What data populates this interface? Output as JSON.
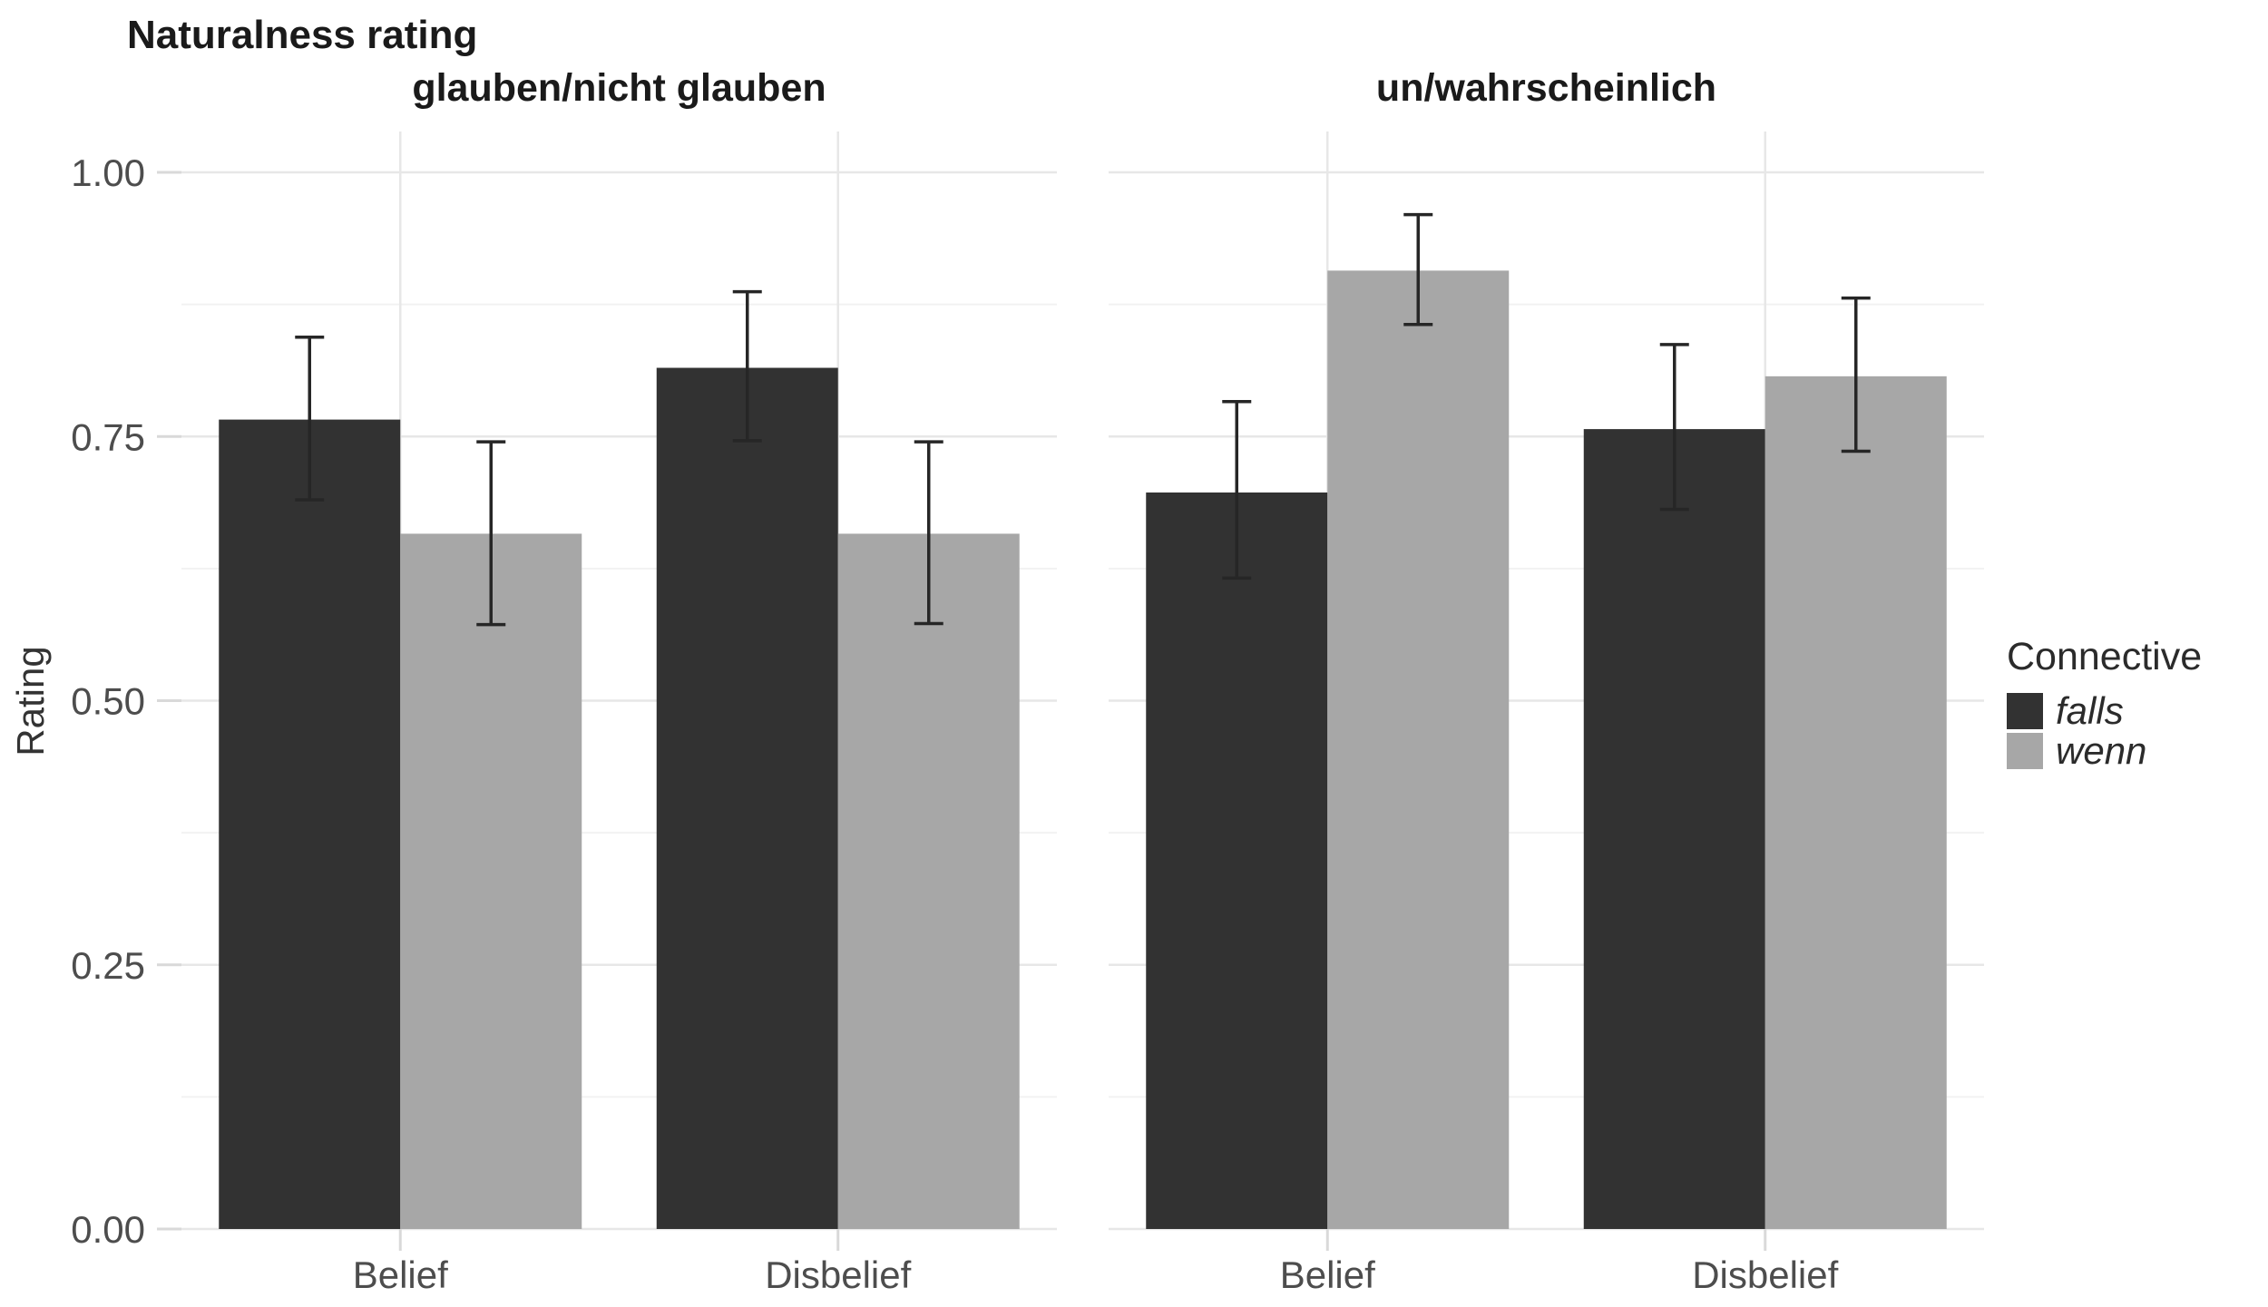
{
  "chart_data": {
    "type": "bar",
    "title": "Naturalness rating",
    "ylabel": "Rating",
    "xlabel": "",
    "ylim": [
      0,
      1
    ],
    "grid": true,
    "legend_position": "right",
    "y_ticks": [
      {
        "value": 0.0,
        "label": "0.00"
      },
      {
        "value": 0.25,
        "label": "0.25"
      },
      {
        "value": 0.5,
        "label": "0.50"
      },
      {
        "value": 0.75,
        "label": "0.75"
      },
      {
        "value": 1.0,
        "label": "1.00"
      }
    ],
    "y_minor_ticks": [
      0.125,
      0.375,
      0.625,
      0.875
    ],
    "categories": [
      "Belief",
      "Disbelief"
    ],
    "series_names": [
      "falls",
      "wenn"
    ],
    "facets": [
      {
        "label": "glauben/nicht glauben",
        "groups": [
          {
            "category": "Belief",
            "bars": [
              {
                "series": "falls",
                "value": 0.766,
                "ci_low": 0.69,
                "ci_high": 0.844
              },
              {
                "series": "wenn",
                "value": 0.658,
                "ci_low": 0.572,
                "ci_high": 0.745
              }
            ]
          },
          {
            "category": "Disbelief",
            "bars": [
              {
                "series": "falls",
                "value": 0.815,
                "ci_low": 0.746,
                "ci_high": 0.887
              },
              {
                "series": "wenn",
                "value": 0.658,
                "ci_low": 0.573,
                "ci_high": 0.745
              }
            ]
          }
        ]
      },
      {
        "label": "un/wahrscheinlich",
        "groups": [
          {
            "category": "Belief",
            "bars": [
              {
                "series": "falls",
                "value": 0.697,
                "ci_low": 0.616,
                "ci_high": 0.783
              },
              {
                "series": "wenn",
                "value": 0.907,
                "ci_low": 0.856,
                "ci_high": 0.96
              }
            ]
          },
          {
            "category": "Disbelief",
            "bars": [
              {
                "series": "falls",
                "value": 0.757,
                "ci_low": 0.681,
                "ci_high": 0.837
              },
              {
                "series": "wenn",
                "value": 0.807,
                "ci_low": 0.736,
                "ci_high": 0.881
              }
            ]
          }
        ]
      }
    ],
    "legend": {
      "title": "Connective",
      "entries": [
        {
          "label": "falls",
          "color": "#323232"
        },
        {
          "label": "wenn",
          "color": "#a7a7a7"
        }
      ]
    },
    "colors": {
      "falls": "#323232",
      "wenn": "#a7a7a7",
      "grid_major": "#e7e7e7",
      "grid_minor": "#f2f2f2",
      "axis_tick": "#d9d9d9",
      "errorbar": "#262626",
      "axis_text": "#4d4d4d",
      "title_text": "#1a1a1a",
      "background": "#ffffff"
    }
  }
}
